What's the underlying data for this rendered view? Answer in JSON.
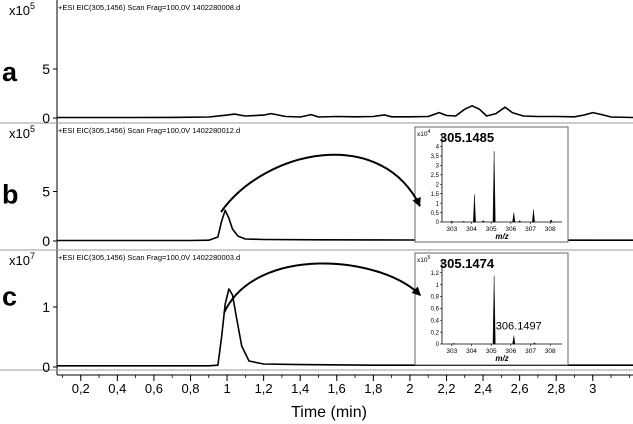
{
  "x_axis": {
    "label": "Time (min)",
    "range": [
      0.07,
      3.22
    ],
    "ticks": [
      "0,2",
      "0,4",
      "0,6",
      "0,8",
      "1",
      "1,2",
      "1,4",
      "1,6",
      "1,8",
      "2",
      "2,2",
      "2,4",
      "2,6",
      "2,8",
      "3"
    ],
    "tick_values": [
      0.2,
      0.4,
      0.6,
      0.8,
      1.0,
      1.2,
      1.4,
      1.6,
      1.8,
      2.0,
      2.2,
      2.4,
      2.6,
      2.8,
      3.0
    ]
  },
  "chart_data": [
    {
      "type": "line",
      "panel_letter": "a",
      "header": "+ESI EIC(305,1456) Scan Frag=100,0V 1402280008.d",
      "y_exponent_base": "x10",
      "y_exponent": "5",
      "y_ticks": [
        "0",
        "5"
      ],
      "y_tick_values": [
        0,
        5
      ],
      "ylim": [
        0,
        10
      ],
      "x": [
        0.07,
        0.3,
        0.5,
        0.7,
        0.9,
        1.0,
        1.04,
        1.1,
        1.2,
        1.24,
        1.27,
        1.32,
        1.4,
        1.46,
        1.5,
        1.6,
        1.7,
        1.8,
        1.86,
        1.9,
        2.0,
        2.1,
        2.16,
        2.2,
        2.25,
        2.3,
        2.34,
        2.38,
        2.42,
        2.47,
        2.52,
        2.56,
        2.62,
        2.7,
        2.8,
        2.9,
        2.95,
        3.0,
        3.05,
        3.1,
        3.22
      ],
      "y": [
        0.05,
        0.05,
        0.05,
        0.06,
        0.1,
        0.3,
        0.4,
        0.2,
        0.3,
        0.45,
        0.35,
        0.15,
        0.1,
        0.35,
        0.1,
        0.15,
        0.12,
        0.15,
        0.32,
        0.12,
        0.12,
        0.15,
        0.55,
        0.25,
        0.2,
        0.9,
        1.25,
        0.9,
        0.2,
        0.45,
        1.1,
        0.55,
        0.2,
        0.15,
        0.15,
        0.12,
        0.3,
        0.55,
        0.35,
        0.1,
        0.05
      ]
    },
    {
      "type": "line",
      "panel_letter": "b",
      "header": "+ESI EIC(305,1456) Scan Frag=100,0V 1402280012.d",
      "y_exponent_base": "x10",
      "y_exponent": "5",
      "y_ticks": [
        "0",
        "5"
      ],
      "y_tick_values": [
        0,
        5
      ],
      "ylim": [
        0,
        10
      ],
      "x": [
        0.07,
        0.4,
        0.8,
        0.9,
        0.95,
        0.97,
        0.99,
        1.01,
        1.03,
        1.06,
        1.1,
        1.2,
        1.5,
        2.0,
        2.5,
        3.0,
        3.22
      ],
      "y": [
        0.05,
        0.05,
        0.05,
        0.08,
        0.4,
        2.0,
        3.1,
        2.3,
        1.2,
        0.5,
        0.2,
        0.15,
        0.12,
        0.1,
        0.1,
        0.08,
        0.08
      ],
      "inset": {
        "type": "bar",
        "peak_label": "305.1485",
        "y_exponent_base": "x10",
        "y_exponent": "4",
        "y_ticks": [
          "0",
          "0,5",
          "1",
          "1,5",
          "2",
          "2,5",
          "3",
          "3,5",
          "4"
        ],
        "y_tick_values": [
          0,
          0.5,
          1,
          1.5,
          2,
          2.5,
          3,
          3.5,
          4
        ],
        "ylim": [
          0,
          4.4
        ],
        "x_ticks": [
          "303",
          "304",
          "305",
          "306",
          "307",
          "308"
        ],
        "x_tick_values": [
          303,
          304,
          305,
          306,
          307,
          308
        ],
        "xlim": [
          302.5,
          308.6
        ],
        "xlabel": "m/z",
        "peaks": [
          {
            "mz": 303.0,
            "intensity": 0.05
          },
          {
            "mz": 303.6,
            "intensity": 0.04
          },
          {
            "mz": 304.15,
            "intensity": 1.45
          },
          {
            "mz": 304.6,
            "intensity": 0.08
          },
          {
            "mz": 305.15,
            "intensity": 3.75
          },
          {
            "mz": 306.15,
            "intensity": 0.5
          },
          {
            "mz": 306.45,
            "intensity": 0.08
          },
          {
            "mz": 307.15,
            "intensity": 0.65
          },
          {
            "mz": 308.05,
            "intensity": 0.12
          }
        ]
      }
    },
    {
      "type": "line",
      "panel_letter": "c",
      "header": "+ESI EIC(305,1456) Scan Frag=100,0V 1402280003.d",
      "y_exponent_base": "x10",
      "y_exponent": "7",
      "y_ticks": [
        "0",
        "1"
      ],
      "y_tick_values": [
        0,
        1
      ],
      "ylim": [
        0,
        1.75
      ],
      "x": [
        0.07,
        0.4,
        0.8,
        0.9,
        0.95,
        0.97,
        0.99,
        1.01,
        1.03,
        1.05,
        1.08,
        1.12,
        1.2,
        1.4,
        1.8,
        2.2,
        2.6,
        3.0,
        3.22
      ],
      "y": [
        0.02,
        0.02,
        0.02,
        0.02,
        0.03,
        0.5,
        1.05,
        1.3,
        1.2,
        0.85,
        0.35,
        0.1,
        0.05,
        0.04,
        0.03,
        0.03,
        0.03,
        0.03,
        0.03
      ],
      "inset": {
        "type": "bar",
        "peak_label": "305.1474",
        "secondary_label": "306.1497",
        "y_exponent_base": "x10",
        "y_exponent": "5",
        "y_ticks": [
          "0",
          "0,2",
          "0,4",
          "0,6",
          "0,8",
          "1",
          "1,2"
        ],
        "y_tick_values": [
          0,
          0.2,
          0.4,
          0.6,
          0.8,
          1.0,
          1.2
        ],
        "ylim": [
          0,
          1.33
        ],
        "x_ticks": [
          "303",
          "304",
          "305",
          "306",
          "307",
          "308"
        ],
        "x_tick_values": [
          303,
          304,
          305,
          306,
          307,
          308
        ],
        "xlim": [
          302.5,
          308.6
        ],
        "xlabel": "m/z",
        "peaks": [
          {
            "mz": 303.1,
            "intensity": 0.01
          },
          {
            "mz": 305.15,
            "intensity": 1.15
          },
          {
            "mz": 306.15,
            "intensity": 0.14
          },
          {
            "mz": 307.2,
            "intensity": 0.02
          }
        ]
      }
    }
  ]
}
